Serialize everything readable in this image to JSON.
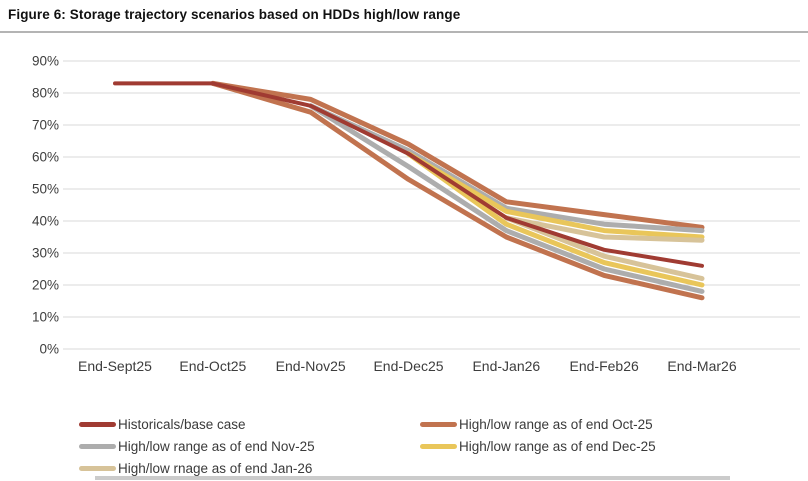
{
  "figure": {
    "title": "Figure 6: Storage trajectory scenarios based on HDDs high/low range"
  },
  "colors": {
    "base": "#a03b32",
    "oct": "#c1734f",
    "nov": "#adadad",
    "dec": "#e9c65a",
    "jan": "#d7c399",
    "gridline": "#dadada",
    "axis_text": "#3d3d3d"
  },
  "chart_data": {
    "type": "line",
    "title": "Figure 6: Storage trajectory scenarios based on HDDs high/low range",
    "categories": [
      "End-Sept25",
      "End-Oct25",
      "End-Nov25",
      "End-Dec25",
      "End-Jan26",
      "End-Feb26",
      "End-Mar26"
    ],
    "y_tick_labels": [
      "0%",
      "10%",
      "20%",
      "30%",
      "40%",
      "50%",
      "60%",
      "70%",
      "80%",
      "90%"
    ],
    "ylim": [
      0,
      90
    ],
    "grid": true,
    "legend_position": "bottom",
    "series": [
      {
        "name": "Historicals/base case",
        "color_key": "base",
        "bound": "single",
        "values": [
          83,
          83,
          76,
          61,
          41,
          31,
          26
        ]
      },
      {
        "name": "High/low range as of end Oct-25",
        "color_key": "oct",
        "bound": "high",
        "values": [
          null,
          83,
          78,
          64,
          46,
          42,
          38
        ]
      },
      {
        "name": "High/low range as of end Oct-25",
        "color_key": "oct",
        "bound": "low",
        "values": [
          null,
          83,
          74,
          53,
          35,
          23,
          16
        ]
      },
      {
        "name": "High/low range as of end Nov-25",
        "color_key": "nov",
        "bound": "high",
        "values": [
          null,
          null,
          76,
          62,
          44,
          39,
          37
        ]
      },
      {
        "name": "High/low range as of end Nov-25",
        "color_key": "nov",
        "bound": "low",
        "values": [
          null,
          null,
          76,
          57,
          37,
          25,
          18
        ]
      },
      {
        "name": "High/low range as of end Dec-25",
        "color_key": "dec",
        "bound": "high",
        "values": [
          null,
          null,
          null,
          61,
          43,
          37,
          35
        ]
      },
      {
        "name": "High/low range as of end Dec-25",
        "color_key": "dec",
        "bound": "low",
        "values": [
          null,
          null,
          null,
          61,
          39,
          27,
          20
        ]
      },
      {
        "name": "High/low rnage as of end Jan-26",
        "color_key": "jan",
        "bound": "high",
        "values": [
          null,
          null,
          null,
          null,
          41,
          35,
          34
        ]
      },
      {
        "name": "High/low rnage as of end Jan-26",
        "color_key": "jan",
        "bound": "low",
        "values": [
          null,
          null,
          null,
          null,
          41,
          29,
          22
        ]
      }
    ]
  },
  "legend": {
    "items": [
      {
        "label": "Historicals/base case",
        "color_key": "base"
      },
      {
        "label": "High/low range as of end Oct-25",
        "color_key": "oct"
      },
      {
        "label": "High/low range as of end Nov-25",
        "color_key": "nov"
      },
      {
        "label": "High/low range as of end Dec-25",
        "color_key": "dec"
      },
      {
        "label": "High/low rnage as of end Jan-26",
        "color_key": "jan"
      }
    ]
  }
}
